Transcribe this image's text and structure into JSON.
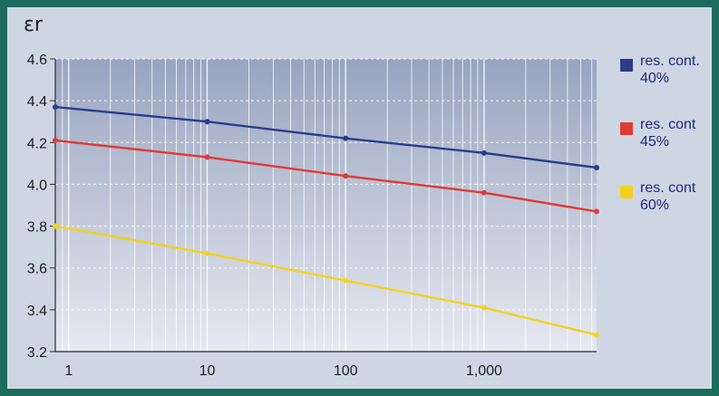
{
  "chart_data": {
    "type": "line",
    "ylabel": "εr",
    "xscale": "log",
    "xlim": [
      0.8,
      6500
    ],
    "ylim": [
      3.2,
      4.6
    ],
    "x_ticks": [
      1,
      10,
      100,
      1000
    ],
    "x_tick_labels": [
      "1",
      "10",
      "100",
      "1,000"
    ],
    "y_ticks": [
      3.2,
      3.4,
      3.6,
      3.8,
      4.0,
      4.2,
      4.4,
      4.6
    ],
    "y_tick_labels": [
      "3.2",
      "3.4",
      "3.6",
      "3.8",
      "4.0",
      "4.2",
      "4.4",
      "4.6"
    ],
    "grid": true,
    "legend_position": "right",
    "series": [
      {
        "name": "res. cont. 40%",
        "color": "#2e3a8c",
        "x": [
          0.8,
          10,
          100,
          1000,
          6500
        ],
        "y": [
          4.37,
          4.3,
          4.22,
          4.15,
          4.08
        ]
      },
      {
        "name": "res. cont 45%",
        "color": "#e03a34",
        "x": [
          0.8,
          10,
          100,
          1000,
          6500
        ],
        "y": [
          4.21,
          4.13,
          4.04,
          3.96,
          3.87
        ]
      },
      {
        "name": "res. cont 60%",
        "color": "#f2d21c",
        "x": [
          0.8,
          10,
          100,
          1000,
          6500
        ],
        "y": [
          3.8,
          3.67,
          3.54,
          3.41,
          3.28
        ]
      }
    ],
    "legend": [
      {
        "label_line1": "res. cont.",
        "label_line2": "40%",
        "color": "#2e3a8c"
      },
      {
        "label_line1": "res. cont",
        "label_line2": "45%",
        "color": "#e03a34"
      },
      {
        "label_line1": "res. cont",
        "label_line2": "60%",
        "color": "#f2d21c"
      }
    ]
  }
}
